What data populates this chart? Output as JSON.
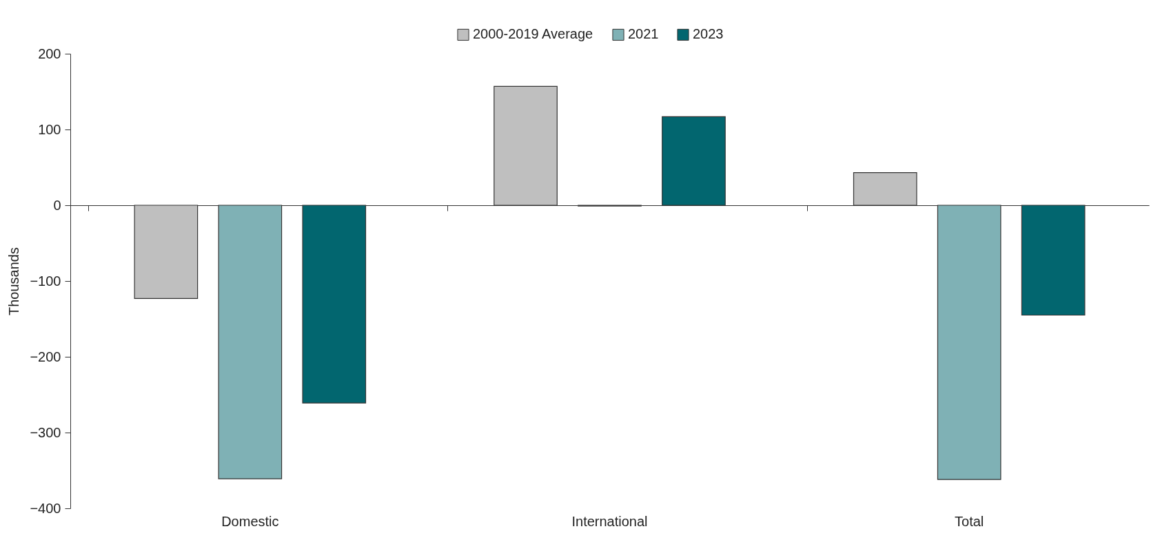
{
  "chart_data": {
    "type": "bar",
    "ylabel": "Thousands",
    "categories": [
      "Domestic",
      "International",
      "Total"
    ],
    "series": [
      {
        "name": "2000-2019 Average",
        "color": "#bfbfbf",
        "values": [
          -123,
          157,
          43
        ]
      },
      {
        "name": "2021",
        "color": "#7fb1b5",
        "values": [
          -361,
          -1,
          -362
        ]
      },
      {
        "name": "2023",
        "color": "#02666f",
        "values": [
          -261,
          117,
          -145
        ]
      }
    ],
    "ylim": [
      -400,
      200
    ],
    "yticks": [
      -400,
      -300,
      -200,
      -100,
      0,
      100,
      200
    ],
    "legend": "top"
  }
}
